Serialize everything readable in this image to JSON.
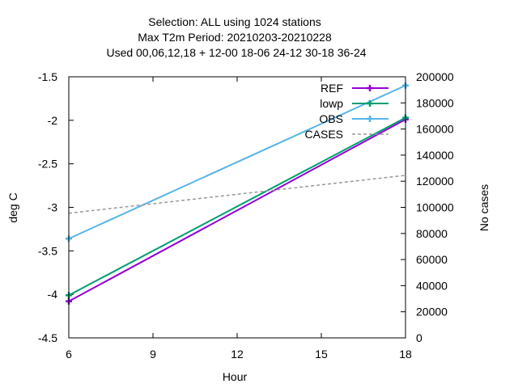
{
  "chart_data": {
    "type": "line",
    "title_lines": [
      "Selection: ALL using  1024 stations",
      "Max T2m    Period: 20210203-20210228",
      "Used  00,06,12,18  + 12-00  18-06  24-12  30-18  36-24"
    ],
    "xlabel": "Hour",
    "ylabel": "deg C",
    "y2label": "No cases",
    "xlim": [
      6,
      18
    ],
    "ylim": [
      -4.5,
      -1.5
    ],
    "y2lim": [
      0,
      200000
    ],
    "xticks": [
      6,
      9,
      12,
      15,
      18
    ],
    "yticks": [
      -4.5,
      -4,
      -3.5,
      -3,
      -2.5,
      -2,
      -1.5
    ],
    "y2ticks": [
      0,
      20000,
      40000,
      60000,
      80000,
      100000,
      120000,
      140000,
      160000,
      180000,
      200000
    ],
    "legend_position": "top-right",
    "series": [
      {
        "name": "REF",
        "axis": "y",
        "color": "#9400d3",
        "style": "solid",
        "markers": true,
        "x": [
          6,
          18
        ],
        "values": [
          -4.08,
          -1.99
        ]
      },
      {
        "name": "lowp",
        "axis": "y",
        "color": "#009e73",
        "style": "solid",
        "markers": true,
        "x": [
          6,
          18
        ],
        "values": [
          -4.01,
          -1.97
        ]
      },
      {
        "name": "OBS",
        "axis": "y",
        "color": "#56b4e9",
        "style": "solid",
        "markers": true,
        "x": [
          6,
          18
        ],
        "values": [
          -3.36,
          -1.6
        ]
      },
      {
        "name": "CASES",
        "axis": "y2",
        "color": "#999999",
        "style": "dashed",
        "markers": false,
        "x": [
          6,
          18
        ],
        "values": [
          95500,
          124500
        ]
      }
    ]
  }
}
